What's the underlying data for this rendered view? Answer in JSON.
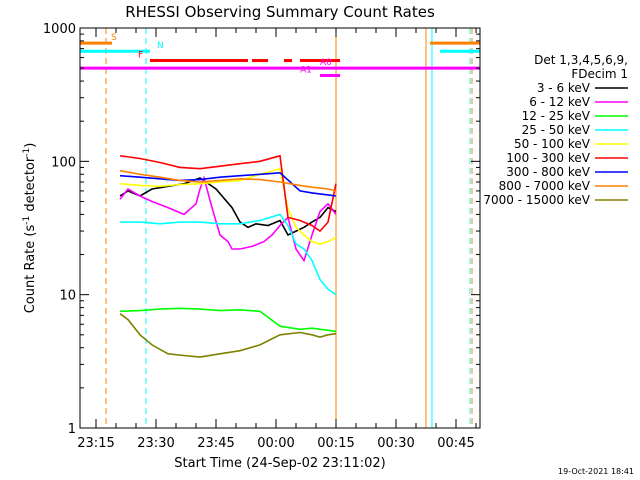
{
  "chart_data": {
    "type": "line",
    "title": "RHESSI Observing Summary Count Rates",
    "xlabel": "Start Time (24-Sep-02 23:11:02)",
    "ylabel_main": "Count Rate (s",
    "ylabel_sup1": "-1",
    "ylabel_mid": " detector",
    "ylabel_sup2": "-1",
    "ylabel_end": ")",
    "x_ticks": [
      "23:15",
      "23:30",
      "23:45",
      "00:00",
      "00:15",
      "00:30",
      "00:45"
    ],
    "x_tick_minutes": [
      4,
      19,
      34,
      49,
      64,
      79,
      94
    ],
    "x_range_minutes": [
      0,
      100
    ],
    "y_scale": "log",
    "y_ticks": [
      "1",
      "10",
      "100",
      "1000"
    ],
    "y_tick_values": [
      1,
      10,
      100,
      1000
    ],
    "y_range": [
      1,
      1000
    ],
    "legend_header": [
      "Det 1,3,4,5,6,9,",
      "FDecim 1"
    ],
    "footer": "19-Oct-2021 18:41",
    "series": [
      {
        "name": "3 - 6 keV",
        "color": "#000000",
        "x": [
          10,
          12,
          15,
          18,
          22,
          26,
          30,
          34,
          38,
          40,
          42,
          44,
          47,
          50,
          52,
          54,
          56,
          58,
          60,
          62,
          64
        ],
        "y": [
          55,
          60,
          55,
          62,
          65,
          68,
          75,
          62,
          45,
          35,
          32,
          34,
          33,
          36,
          28,
          30,
          32,
          35,
          38,
          45,
          42
        ]
      },
      {
        "name": "6 - 12 keV",
        "color": "#ff00ff",
        "x": [
          10,
          12,
          15,
          18,
          22,
          26,
          29,
          30,
          31,
          33,
          35,
          37,
          38,
          40,
          43,
          46,
          48,
          50,
          52,
          54,
          56,
          58,
          60,
          62,
          64
        ],
        "y": [
          52,
          62,
          55,
          50,
          45,
          40,
          48,
          62,
          75,
          45,
          28,
          25,
          22,
          22,
          23,
          25,
          28,
          33,
          38,
          22,
          18,
          28,
          42,
          48,
          40
        ]
      },
      {
        "name": "12 - 25 keV",
        "color": "#00ff00",
        "x": [
          10,
          15,
          20,
          25,
          30,
          35,
          40,
          45,
          50,
          55,
          58,
          60,
          62,
          64
        ],
        "y": [
          7.5,
          7.6,
          7.8,
          7.9,
          7.8,
          7.6,
          7.7,
          7.5,
          5.8,
          5.5,
          5.6,
          5.5,
          5.4,
          5.3
        ]
      },
      {
        "name": "25 - 50 keV",
        "color": "#00ffff",
        "x": [
          10,
          15,
          20,
          25,
          30,
          35,
          40,
          45,
          50,
          52,
          54,
          56,
          58,
          60,
          62,
          64
        ],
        "y": [
          35,
          35,
          34,
          35,
          35,
          34,
          34,
          36,
          40,
          33,
          24,
          22,
          18,
          13,
          11,
          10
        ]
      },
      {
        "name": "50 - 100 keV",
        "color": "#ffff00",
        "x": [
          10,
          15,
          20,
          25,
          30,
          35,
          40,
          45,
          50,
          52,
          54,
          56,
          58,
          60,
          62,
          64
        ],
        "y": [
          68,
          66,
          65,
          67,
          68,
          70,
          72,
          80,
          88,
          44,
          32,
          28,
          25,
          24,
          25,
          27
        ]
      },
      {
        "name": "100 - 300 keV",
        "color": "#ff0000",
        "x": [
          10,
          15,
          20,
          25,
          30,
          35,
          40,
          45,
          50,
          52,
          55,
          58,
          60,
          62,
          64
        ],
        "y": [
          110,
          105,
          98,
          90,
          88,
          92,
          96,
          100,
          110,
          38,
          36,
          33,
          30,
          35,
          68
        ]
      },
      {
        "name": "300 - 800 keV",
        "color": "#0000ff",
        "x": [
          10,
          15,
          20,
          25,
          30,
          35,
          40,
          45,
          50,
          55,
          58,
          60,
          62,
          64
        ],
        "y": [
          78,
          76,
          74,
          72,
          73,
          76,
          78,
          80,
          82,
          60,
          58,
          57,
          56,
          55
        ]
      },
      {
        "name": "800 - 7000 keV",
        "color": "#ff8000",
        "x": [
          10,
          15,
          20,
          25,
          30,
          35,
          40,
          45,
          50,
          55,
          58,
          60,
          62,
          64
        ],
        "y": [
          85,
          80,
          76,
          72,
          70,
          72,
          74,
          73,
          70,
          66,
          64,
          63,
          62,
          60
        ]
      },
      {
        "name": "7000 - 15000 keV",
        "color": "#808000",
        "x": [
          10,
          12,
          15,
          18,
          22,
          26,
          30,
          35,
          40,
          45,
          50,
          55,
          58,
          60,
          62,
          64
        ],
        "y": [
          7.2,
          6.5,
          5.0,
          4.2,
          3.6,
          3.5,
          3.4,
          3.6,
          3.8,
          4.2,
          5.0,
          5.2,
          5.0,
          4.8,
          5.0,
          5.1
        ]
      }
    ],
    "flags": [
      {
        "label": "S",
        "color": "#ff8000",
        "segments": [
          [
            0,
            8
          ],
          [
            87.5,
            100
          ]
        ],
        "y": 770
      },
      {
        "label": "N",
        "color": "#00ffff",
        "segments": [
          [
            0,
            17.5
          ],
          [
            90,
            100
          ]
        ],
        "y": 670
      },
      {
        "label": "F",
        "color": "#ff0000",
        "segments": [
          [
            17.5,
            42
          ],
          [
            43,
            47
          ],
          [
            51,
            53
          ],
          [
            55,
            65
          ]
        ],
        "y": 570
      },
      {
        "label": "A0",
        "color": "#ff00ff",
        "segments": [
          [
            0,
            100
          ]
        ],
        "y": 500
      },
      {
        "label": "A1",
        "color": "#ff00ff",
        "segments": [
          [
            60,
            65
          ]
        ],
        "y": 440
      }
    ],
    "vertical_markers": [
      {
        "x": 6.5,
        "color": "#ff8000",
        "style": "dashed"
      },
      {
        "x": 16.5,
        "color": "#00ffff",
        "style": "dashed"
      },
      {
        "x": 64,
        "color": "#ff8000",
        "style": "solid"
      },
      {
        "x": 86.5,
        "color": "#ff8000",
        "style": "solid"
      },
      {
        "x": 88,
        "color": "#00ffff",
        "style": "solid"
      },
      {
        "x": 97.5,
        "color": "#00ffff",
        "style": "dashed"
      },
      {
        "x": 98,
        "color": "#ff8000",
        "style": "dashed"
      }
    ]
  }
}
